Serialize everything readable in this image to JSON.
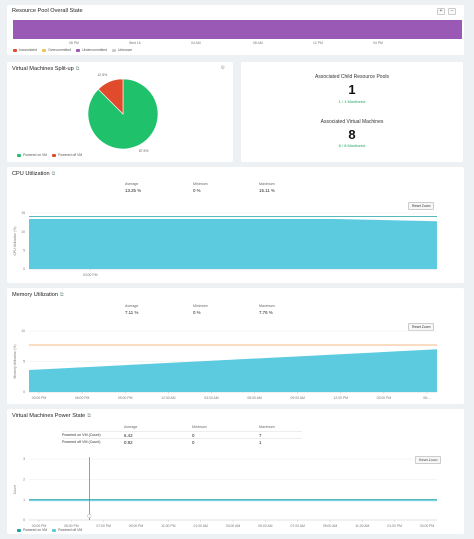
{
  "resource_pool": {
    "title": "Resource Pool Overall State",
    "zoom_in": "+",
    "zoom_out": "−",
    "ticks": [
      "08 PM",
      "Wed 16",
      "04 AM",
      "08 AM",
      "12 PM",
      "04 PM"
    ],
    "legend": [
      "Inconsistent",
      "Overcommitted",
      "Undercommitted",
      "Unknown"
    ],
    "colors": {
      "inconsistent": "#e04b2c",
      "overcommitted": "#f2c25c",
      "undercommitted": "#9b59b6",
      "unknown": "#cccccc"
    }
  },
  "vm_split": {
    "title": "Virtual Machines Split-up",
    "chart_data": {
      "type": "pie",
      "labels": [
        "Powered on VM",
        "Powered off VM"
      ],
      "values": [
        87.5,
        12.5
      ],
      "value_labels": [
        "87.5%",
        "12.5%"
      ],
      "colors": [
        "#1fc16b",
        "#e04b2c"
      ]
    }
  },
  "associated": {
    "pools_label": "Associated Child Resource Pools",
    "pools_count": "1",
    "pools_monitored": "1 / 1 Monitored",
    "vms_label": "Associated Virtual Machines",
    "vms_count": "8",
    "vms_monitored": "8 / 8 Monitored"
  },
  "cpu": {
    "title": "CPU Utilization",
    "stats": {
      "average_label": "Average",
      "average": "13.25 %",
      "minimum_label": "Minimum",
      "minimum": "0 %",
      "maximum_label": "Maximum",
      "maximum": "15.11 %"
    },
    "reset": "Reset Zoom",
    "chart_data": {
      "type": "area",
      "ylabel": "CPU Utilization (%)",
      "ylim": [
        0,
        15
      ],
      "yticks": [
        "15",
        "10",
        "5",
        "0"
      ],
      "xticks": [
        "03:00 PM"
      ],
      "series": [
        {
          "values": [
            13.4,
            13.4,
            13.4,
            13.4,
            12.8
          ]
        }
      ],
      "threshold": 14.1,
      "colors": {
        "fill": "#5ccbe0",
        "threshold": "#1fa3a3"
      }
    }
  },
  "memory": {
    "title": "Memory Utilization",
    "stats": {
      "average_label": "Average",
      "average": "7.11 %",
      "minimum_label": "Minimum",
      "minimum": "0 %",
      "maximum_label": "Maximum",
      "maximum": "7.76 %"
    },
    "reset": "Reset Zoom",
    "chart_data": {
      "type": "area",
      "ylabel": "Memory Utilization (%)",
      "ylim": [
        0,
        10
      ],
      "yticks": [
        "10",
        "5",
        "0"
      ],
      "xticks": [
        "03:00 PM",
        "06:00 PM",
        "09:00 PM",
        "12:00 AM",
        "03:00 AM",
        "06:00 AM",
        "09:00 AM",
        "12:00 PM",
        "03:00 PM",
        "06:..."
      ],
      "series": [
        {
          "values": [
            3.6,
            7.0
          ]
        }
      ],
      "threshold": 7.7,
      "colors": {
        "fill": "#5ccbe0",
        "threshold": "#f2a35c"
      }
    }
  },
  "power": {
    "title": "Virtual Machines Power State",
    "headers": [
      "Average",
      "Minimum",
      "Maximum"
    ],
    "rows": [
      {
        "label": "Powered on VM (Count)",
        "average": "6.42",
        "minimum": "0",
        "maximum": "7"
      },
      {
        "label": "Powered off VM (Count)",
        "average": "0.92",
        "minimum": "0",
        "maximum": "1"
      }
    ],
    "reset": "Reset Zoom",
    "chart_data": {
      "type": "line",
      "ylabel": "Count",
      "ylim": [
        0,
        3
      ],
      "yticks": [
        "3",
        "2",
        "1",
        "0"
      ],
      "xticks": [
        "03:00 PM",
        "05:00 PM",
        "07:00 PM",
        "09:00 PM",
        "11:00 PM",
        "01:00 AM",
        "03:00 AM",
        "05:00 AM",
        "07:00 AM",
        "09:00 AM",
        "11:00 AM",
        "01:00 PM",
        "03:00 PM"
      ],
      "series": [
        {
          "name": "Powered on VM",
          "values": [
            1.0,
            1.0
          ]
        },
        {
          "name": "Powered off VM",
          "values": [
            0.95,
            0.95
          ]
        }
      ],
      "colors": {
        "on": "#1fa3a3",
        "off": "#5ccbe0",
        "marker": "#e04b2c"
      }
    }
  }
}
